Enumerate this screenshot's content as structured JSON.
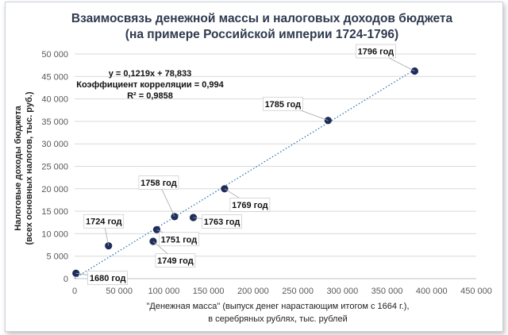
{
  "chart_data": {
    "type": "scatter",
    "title": "Взаимосвязь денежной массы и налоговых доходов бюджета",
    "subtitle": "(на примере Российской империи 1724-1796)",
    "xlabel_line1": "\"Денежная масса\" (выпуск денег нарастающим  итогом с 1664 г.),",
    "xlabel_line2": "в серебряных рублях, тыс. рублей",
    "ylabel_line1": "Налоговые доходы бюджета",
    "ylabel_line2": "(всех основных налогов, тыс. руб.)",
    "xlim": [
      0,
      450000
    ],
    "ylim": [
      0,
      50000
    ],
    "x_ticks": [
      "0",
      "50 000",
      "100 000",
      "150 000",
      "200 000",
      "250 000",
      "300 000",
      "350 000",
      "400 000",
      "450 000"
    ],
    "y_ticks": [
      "0",
      "5 000",
      "10 000",
      "15 000",
      "20 000",
      "25 000",
      "30 000",
      "35 000",
      "40 000",
      "45 000",
      "50 000"
    ],
    "grid": "horizontal",
    "point_color": "#1f2d5a",
    "trend_color": "#2e75b6",
    "points": [
      {
        "label": "1680 год",
        "x": 1500,
        "y": 1200
      },
      {
        "label": "1724 год",
        "x": 38000,
        "y": 7300
      },
      {
        "label": "1749 год",
        "x": 88000,
        "y": 8300
      },
      {
        "label": "1751 год",
        "x": 92000,
        "y": 10900
      },
      {
        "label": "1758 год",
        "x": 112000,
        "y": 13800
      },
      {
        "label": "1763 год",
        "x": 133000,
        "y": 13600
      },
      {
        "label": "1769 год",
        "x": 168000,
        "y": 20000
      },
      {
        "label": "1785 год",
        "x": 284000,
        "y": 35200
      },
      {
        "label": "1796 год",
        "x": 381000,
        "y": 46200
      }
    ],
    "trendline": {
      "slope": 0.1219,
      "intercept": 78.833
    },
    "annotation": [
      "y = 0,1219x + 78,833",
      "Коэффициент корреляции = 0,994",
      "R² = 0,9858"
    ]
  }
}
